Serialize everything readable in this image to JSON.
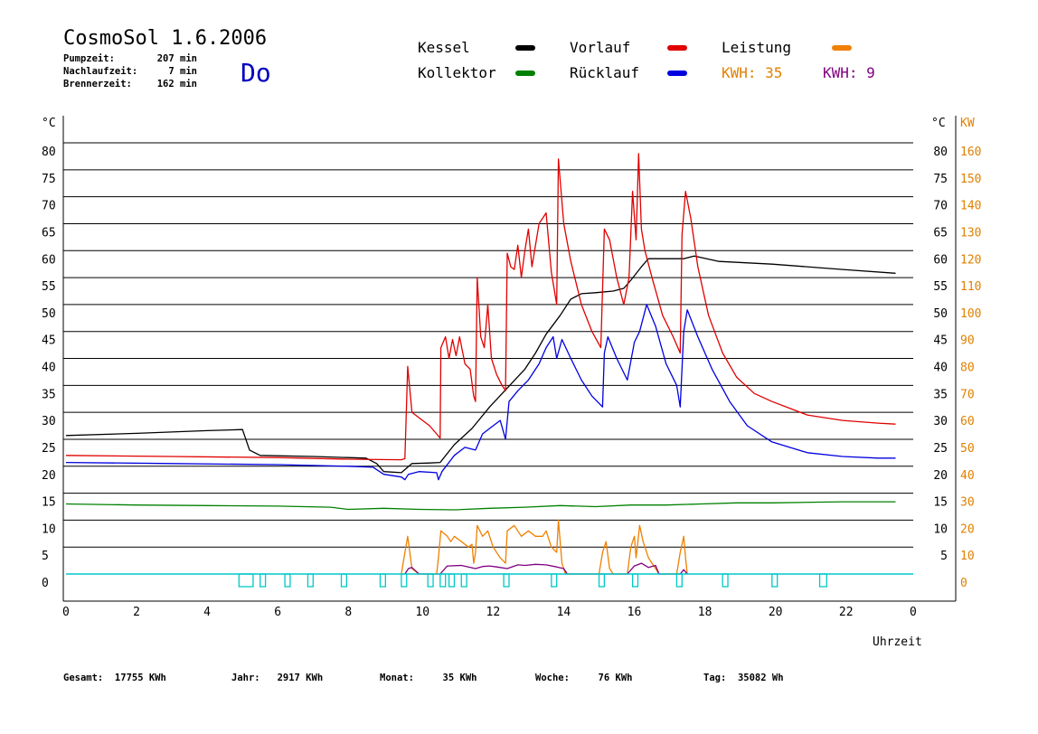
{
  "header": {
    "title": "CosmoSol 1.6.2006",
    "day": "Do",
    "stats": [
      {
        "label": "Pumpzeit:",
        "value": "207 min"
      },
      {
        "label": "Nachlaufzeit:",
        "value": "7 min"
      },
      {
        "label": "Brennerzeit:",
        "value": "162 min"
      }
    ]
  },
  "legend": [
    {
      "name": "Kessel",
      "color": "#000000"
    },
    {
      "name": "Vorlauf",
      "color": "#e00000"
    },
    {
      "name": "Leistung",
      "color": "#f08000"
    },
    {
      "name": "Kollektor",
      "color": "#008000"
    },
    {
      "name": "Rücklauf",
      "color": "#0000e0"
    }
  ],
  "kwh": [
    {
      "label": "KWH:",
      "value": "35",
      "color": "#e08000"
    },
    {
      "label": "KWH:",
      "value": "9",
      "color": "#800080"
    }
  ],
  "footer": [
    {
      "label": "Gesamt:",
      "value": "17755 KWh"
    },
    {
      "label": "Jahr:",
      "value": "2917 KWh"
    },
    {
      "label": "Monat:",
      "value": "35 KWh"
    },
    {
      "label": "Woche:",
      "value": "76 KWh"
    },
    {
      "label": "Tag:",
      "value": "35082 Wh"
    }
  ],
  "chart_data": {
    "type": "line",
    "xlabel": "Uhrzeit",
    "xlim": [
      0,
      24
    ],
    "x_ticks": [
      "0",
      "2",
      "4",
      "6",
      "8",
      "10",
      "12",
      "14",
      "16",
      "18",
      "20",
      "22",
      "0"
    ],
    "y_left": {
      "unit": "°C",
      "range": [
        0,
        80
      ],
      "ticks": [
        0,
        5,
        10,
        15,
        20,
        25,
        30,
        35,
        40,
        45,
        50,
        55,
        60,
        65,
        70,
        75,
        80
      ]
    },
    "y_right_temp": {
      "unit": "°C",
      "ticks": [
        5,
        10,
        15,
        20,
        25,
        30,
        35,
        40,
        45,
        50,
        55,
        60,
        65,
        70,
        75,
        80
      ]
    },
    "y_right_power": {
      "unit": "KW",
      "range": [
        0,
        160
      ],
      "ticks": [
        0,
        10,
        20,
        30,
        40,
        50,
        60,
        70,
        80,
        90,
        100,
        110,
        120,
        130,
        140,
        150,
        160
      ]
    },
    "grid": true,
    "series": [
      {
        "name": "Kessel",
        "color": "#000000",
        "points": [
          [
            0,
            25.7
          ],
          [
            2,
            26.1
          ],
          [
            4,
            26.6
          ],
          [
            5,
            26.8
          ],
          [
            5.2,
            23
          ],
          [
            5.5,
            22
          ],
          [
            7,
            21.8
          ],
          [
            8.5,
            21.5
          ],
          [
            8.8,
            20.5
          ],
          [
            9,
            19
          ],
          [
            9.5,
            18.8
          ],
          [
            9.8,
            20.5
          ],
          [
            10.3,
            20.6
          ],
          [
            10.6,
            20.7
          ],
          [
            11,
            24
          ],
          [
            11.5,
            27
          ],
          [
            12,
            31
          ],
          [
            12.5,
            34.5
          ],
          [
            13,
            38
          ],
          [
            13.3,
            41
          ],
          [
            13.6,
            44.5
          ],
          [
            14,
            48
          ],
          [
            14.3,
            51
          ],
          [
            14.6,
            52
          ],
          [
            15,
            52.2
          ],
          [
            15.5,
            52.5
          ],
          [
            15.8,
            53
          ],
          [
            16,
            54.5
          ],
          [
            16.3,
            57
          ],
          [
            16.5,
            58.5
          ],
          [
            17.5,
            58.5
          ],
          [
            17.8,
            59
          ],
          [
            18.5,
            58
          ],
          [
            20,
            57.5
          ],
          [
            22,
            56.5
          ],
          [
            23.5,
            55.8
          ]
        ]
      },
      {
        "name": "Vorlauf",
        "color": "#e00000",
        "points": [
          [
            0,
            22
          ],
          [
            3,
            21.8
          ],
          [
            6,
            21.6
          ],
          [
            8,
            21.3
          ],
          [
            9.5,
            21.2
          ],
          [
            9.6,
            21.4
          ],
          [
            9.68,
            38.5
          ],
          [
            9.8,
            30
          ],
          [
            10,
            29
          ],
          [
            10.3,
            27.5
          ],
          [
            10.5,
            26
          ],
          [
            10.6,
            25.2
          ],
          [
            10.62,
            42
          ],
          [
            10.75,
            44
          ],
          [
            10.85,
            40
          ],
          [
            10.95,
            43.5
          ],
          [
            11.05,
            40.5
          ],
          [
            11.15,
            44
          ],
          [
            11.3,
            39
          ],
          [
            11.45,
            38
          ],
          [
            11.55,
            33
          ],
          [
            11.6,
            32
          ],
          [
            11.65,
            55
          ],
          [
            11.75,
            44
          ],
          [
            11.85,
            42
          ],
          [
            11.95,
            50
          ],
          [
            12.05,
            40
          ],
          [
            12.2,
            37
          ],
          [
            12.35,
            35
          ],
          [
            12.45,
            34
          ],
          [
            12.5,
            59.5
          ],
          [
            12.6,
            57
          ],
          [
            12.7,
            56.5
          ],
          [
            12.8,
            61
          ],
          [
            12.9,
            55
          ],
          [
            13,
            60
          ],
          [
            13.1,
            64
          ],
          [
            13.2,
            57
          ],
          [
            13.4,
            65
          ],
          [
            13.5,
            66
          ],
          [
            13.6,
            67
          ],
          [
            13.75,
            56
          ],
          [
            13.9,
            50
          ],
          [
            13.95,
            77
          ],
          [
            14.1,
            65
          ],
          [
            14.3,
            58
          ],
          [
            14.6,
            50
          ],
          [
            14.9,
            45
          ],
          [
            15.15,
            42
          ],
          [
            15.25,
            64
          ],
          [
            15.4,
            62
          ],
          [
            15.6,
            55
          ],
          [
            15.8,
            50
          ],
          [
            15.95,
            55
          ],
          [
            16.05,
            71
          ],
          [
            16.15,
            62
          ],
          [
            16.22,
            78
          ],
          [
            16.3,
            64
          ],
          [
            16.4,
            60
          ],
          [
            16.6,
            55
          ],
          [
            16.9,
            48
          ],
          [
            17.2,
            44
          ],
          [
            17.4,
            41
          ],
          [
            17.45,
            63
          ],
          [
            17.55,
            71
          ],
          [
            17.7,
            66
          ],
          [
            17.9,
            57
          ],
          [
            18.2,
            48
          ],
          [
            18.6,
            41
          ],
          [
            19,
            36.5
          ],
          [
            19.5,
            33.5
          ],
          [
            20,
            32
          ],
          [
            21,
            29.5
          ],
          [
            22,
            28.5
          ],
          [
            23,
            28
          ],
          [
            23.5,
            27.8
          ]
        ]
      },
      {
        "name": "Rücklauf",
        "color": "#0000e0",
        "points": [
          [
            0,
            20.7
          ],
          [
            3,
            20.5
          ],
          [
            6,
            20.3
          ],
          [
            8,
            20
          ],
          [
            8.7,
            19.8
          ],
          [
            9,
            18.5
          ],
          [
            9.5,
            18
          ],
          [
            9.6,
            17.5
          ],
          [
            9.7,
            18.5
          ],
          [
            10,
            19
          ],
          [
            10.5,
            18.8
          ],
          [
            10.55,
            17.5
          ],
          [
            10.65,
            19
          ],
          [
            11,
            22
          ],
          [
            11.3,
            23.5
          ],
          [
            11.6,
            23
          ],
          [
            11.8,
            26
          ],
          [
            12,
            27
          ],
          [
            12.3,
            28.5
          ],
          [
            12.45,
            25
          ],
          [
            12.55,
            32
          ],
          [
            12.8,
            34
          ],
          [
            13.1,
            36
          ],
          [
            13.4,
            39
          ],
          [
            13.6,
            42
          ],
          [
            13.8,
            44
          ],
          [
            13.9,
            40
          ],
          [
            14.05,
            43.5
          ],
          [
            14.3,
            40
          ],
          [
            14.6,
            36
          ],
          [
            14.9,
            33
          ],
          [
            15.2,
            31
          ],
          [
            15.25,
            41
          ],
          [
            15.35,
            44
          ],
          [
            15.6,
            40
          ],
          [
            15.9,
            36
          ],
          [
            16.1,
            43
          ],
          [
            16.25,
            45
          ],
          [
            16.45,
            50
          ],
          [
            16.7,
            46
          ],
          [
            17,
            39
          ],
          [
            17.3,
            35
          ],
          [
            17.4,
            31
          ],
          [
            17.5,
            45
          ],
          [
            17.6,
            49
          ],
          [
            17.9,
            44
          ],
          [
            18.3,
            38
          ],
          [
            18.8,
            32
          ],
          [
            19.3,
            27.5
          ],
          [
            20,
            24.5
          ],
          [
            21,
            22.5
          ],
          [
            22,
            21.8
          ],
          [
            23,
            21.5
          ],
          [
            23.5,
            21.5
          ]
        ]
      },
      {
        "name": "Kollektor",
        "color": "#008000",
        "points": [
          [
            0,
            13
          ],
          [
            2,
            12.8
          ],
          [
            4,
            12.7
          ],
          [
            6,
            12.6
          ],
          [
            7.5,
            12.4
          ],
          [
            8,
            12
          ],
          [
            9,
            12.2
          ],
          [
            10,
            12
          ],
          [
            11,
            11.9
          ],
          [
            12,
            12.2
          ],
          [
            13,
            12.4
          ],
          [
            14,
            12.7
          ],
          [
            15,
            12.5
          ],
          [
            16,
            12.8
          ],
          [
            17,
            12.8
          ],
          [
            18,
            13
          ],
          [
            19,
            13.2
          ],
          [
            20,
            13.2
          ],
          [
            22,
            13.4
          ],
          [
            23.5,
            13.4
          ]
        ]
      },
      {
        "name": "Leistung",
        "color": "#f08000",
        "points": [
          [
            9.5,
            0
          ],
          [
            9.6,
            4
          ],
          [
            9.68,
            7
          ],
          [
            9.8,
            1
          ],
          [
            10,
            0
          ],
          [
            10.5,
            0
          ],
          [
            10.55,
            3
          ],
          [
            10.62,
            8
          ],
          [
            10.8,
            7
          ],
          [
            10.9,
            6
          ],
          [
            11,
            7
          ],
          [
            11.2,
            6
          ],
          [
            11.4,
            5
          ],
          [
            11.5,
            5.5
          ],
          [
            11.55,
            2
          ],
          [
            11.6,
            4
          ],
          [
            11.65,
            9
          ],
          [
            11.8,
            7
          ],
          [
            11.95,
            8
          ],
          [
            12.1,
            5
          ],
          [
            12.3,
            3
          ],
          [
            12.45,
            2
          ],
          [
            12.5,
            8
          ],
          [
            12.7,
            9
          ],
          [
            12.9,
            7
          ],
          [
            13.1,
            8
          ],
          [
            13.3,
            7
          ],
          [
            13.5,
            7
          ],
          [
            13.6,
            8
          ],
          [
            13.75,
            5
          ],
          [
            13.9,
            4
          ],
          [
            13.95,
            10
          ],
          [
            14.05,
            2
          ],
          [
            14.15,
            0
          ],
          [
            15.1,
            0
          ],
          [
            15.2,
            4
          ],
          [
            15.3,
            6
          ],
          [
            15.4,
            1
          ],
          [
            15.5,
            0
          ],
          [
            15.9,
            0
          ],
          [
            16,
            5
          ],
          [
            16.1,
            7
          ],
          [
            16.15,
            3
          ],
          [
            16.2,
            6
          ],
          [
            16.25,
            9
          ],
          [
            16.35,
            6
          ],
          [
            16.5,
            3
          ],
          [
            16.7,
            1
          ],
          [
            16.8,
            0
          ],
          [
            17.3,
            0
          ],
          [
            17.4,
            4
          ],
          [
            17.5,
            7
          ],
          [
            17.55,
            3
          ],
          [
            17.6,
            0
          ]
        ]
      },
      {
        "name": "Leistung2",
        "color": "#800080",
        "points": [
          [
            9.6,
            0
          ],
          [
            9.7,
            1
          ],
          [
            9.8,
            1.2
          ],
          [
            10,
            0
          ],
          [
            10.6,
            0
          ],
          [
            10.8,
            1.5
          ],
          [
            11.2,
            1.6
          ],
          [
            11.6,
            1
          ],
          [
            11.8,
            1.4
          ],
          [
            12,
            1.5
          ],
          [
            12.2,
            1.3
          ],
          [
            12.5,
            1
          ],
          [
            12.8,
            1.7
          ],
          [
            13,
            1.6
          ],
          [
            13.3,
            1.8
          ],
          [
            13.6,
            1.7
          ],
          [
            13.9,
            1.3
          ],
          [
            14.1,
            1
          ],
          [
            14.2,
            0
          ],
          [
            15.9,
            0
          ],
          [
            16.1,
            1.5
          ],
          [
            16.3,
            2
          ],
          [
            16.5,
            1.2
          ],
          [
            16.7,
            1.6
          ],
          [
            16.8,
            0
          ],
          [
            17.4,
            0
          ],
          [
            17.5,
            0.8
          ],
          [
            17.6,
            0
          ]
        ]
      },
      {
        "name": "Pumpe",
        "color": "#00c8c8",
        "baseline": 0,
        "pulses": [
          [
            4.9,
            5.3
          ],
          [
            5.5,
            5.65
          ],
          [
            6.2,
            6.35
          ],
          [
            6.85,
            7
          ],
          [
            7.8,
            7.95
          ],
          [
            8.9,
            9.05
          ],
          [
            9.5,
            9.65
          ],
          [
            10.25,
            10.4
          ],
          [
            10.6,
            10.75
          ],
          [
            10.85,
            11
          ],
          [
            11.2,
            11.35
          ],
          [
            12.4,
            12.55
          ],
          [
            13.75,
            13.9
          ],
          [
            15.1,
            15.25
          ],
          [
            16.05,
            16.2
          ],
          [
            17.3,
            17.45
          ],
          [
            18.6,
            18.75
          ],
          [
            20,
            20.15
          ],
          [
            21.35,
            21.55
          ]
        ]
      }
    ]
  }
}
